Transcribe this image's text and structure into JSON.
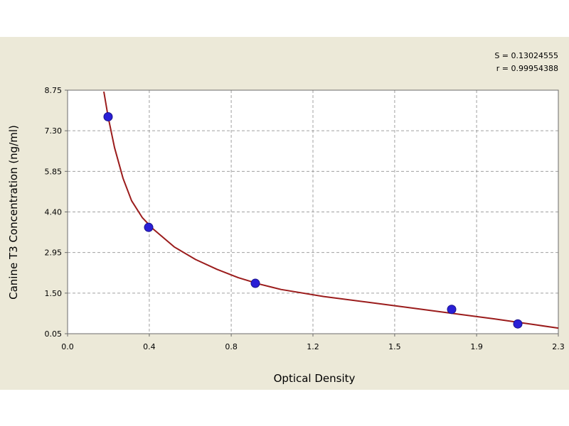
{
  "colors": {
    "background": "#ece9d8",
    "plot_background": "#ffffff",
    "grid": "#a0a0a0",
    "curve": "#9b1c1c",
    "points": "#2a1fd6"
  },
  "stats": {
    "s_label": "S = 0.13024555",
    "r_label": "r = 0.99954388"
  },
  "chart_data": {
    "type": "scatter",
    "title": "",
    "xlabel": "Optical Density",
    "ylabel": "Canine T3 Concentration (ng/ml)",
    "xlim": [
      0.0,
      2.3
    ],
    "ylim": [
      0.05,
      8.75
    ],
    "x_ticks": [
      "0.0",
      "0.4",
      "0.8",
      "1.2",
      "1.5",
      "1.9",
      "2.3"
    ],
    "x_tick_values": [
      0.0,
      0.383,
      0.767,
      1.15,
      1.533,
      1.917,
      2.3
    ],
    "y_ticks": [
      "8.75",
      "7.30",
      "5.85",
      "4.40",
      "2.95",
      "1.50",
      "0.05"
    ],
    "y_tick_values": [
      8.75,
      7.3,
      5.85,
      4.4,
      2.95,
      1.5,
      0.05
    ],
    "grid": true,
    "points": [
      {
        "x": 0.19,
        "y": 7.8
      },
      {
        "x": 0.38,
        "y": 3.85
      },
      {
        "x": 0.88,
        "y": 1.85
      },
      {
        "x": 1.8,
        "y": 0.92
      },
      {
        "x": 2.11,
        "y": 0.4
      }
    ],
    "fit_curve": {
      "x": [
        0.17,
        0.19,
        0.22,
        0.26,
        0.3,
        0.35,
        0.4,
        0.5,
        0.6,
        0.7,
        0.8,
        0.9,
        1.0,
        1.2,
        1.4,
        1.6,
        1.8,
        2.0,
        2.2,
        2.3
      ],
      "y": [
        8.7,
        7.8,
        6.7,
        5.6,
        4.8,
        4.2,
        3.8,
        3.15,
        2.7,
        2.35,
        2.05,
        1.82,
        1.63,
        1.38,
        1.18,
        0.98,
        0.78,
        0.58,
        0.36,
        0.25
      ]
    }
  }
}
